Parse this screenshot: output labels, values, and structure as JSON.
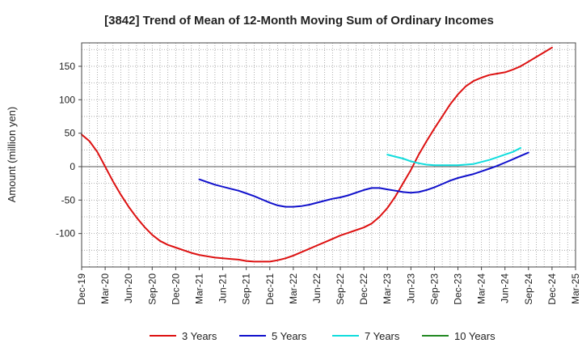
{
  "chart_data": {
    "type": "line",
    "title": "[3842]  Trend of Mean of 12-Month Moving Sum of Ordinary Incomes",
    "xlabel": "",
    "ylabel": "Amount (million yen)",
    "ylim": [
      -150,
      185
    ],
    "yticks": [
      150,
      100,
      50,
      0,
      -50,
      -100
    ],
    "xtick_labels": [
      "Dec-19",
      "Mar-20",
      "Jun-20",
      "Sep-20",
      "Dec-20",
      "Mar-21",
      "Jun-21",
      "Sep-21",
      "Dec-21",
      "Mar-22",
      "Jun-22",
      "Sep-22",
      "Dec-22",
      "Mar-23",
      "Jun-23",
      "Sep-23",
      "Dec-23",
      "Mar-24",
      "Jun-24",
      "Sep-24",
      "Dec-24",
      "Mar-25"
    ],
    "grid": true,
    "legend_position": "bottom",
    "series": [
      {
        "name": "3 Years",
        "color": "#dd1111",
        "start_index": 0,
        "values": [
          48,
          38,
          22,
          0,
          -22,
          -42,
          -60,
          -76,
          -90,
          -102,
          -111,
          -117,
          -121,
          -125,
          -129,
          -132,
          -134,
          -136,
          -137,
          -138,
          -139,
          -141,
          -142,
          -142,
          -142,
          -140,
          -137,
          -133,
          -128,
          -123,
          -118,
          -113,
          -108,
          -103,
          -99,
          -95,
          -91,
          -85,
          -75,
          -62,
          -45,
          -25,
          -5,
          18,
          38,
          57,
          75,
          93,
          108,
          120,
          128,
          133,
          137,
          139,
          141,
          145,
          150,
          157,
          164,
          171,
          178
        ]
      },
      {
        "name": "5 Years",
        "color": "#1111cc",
        "start_index": 15,
        "values": [
          -19,
          -23,
          -27,
          -30,
          -33,
          -36,
          -40,
          -44,
          -49,
          -54,
          -58,
          -60,
          -60,
          -59,
          -57,
          -54,
          -51,
          -48,
          -46,
          -43,
          -39,
          -35,
          -32,
          -32,
          -34,
          -36,
          -38,
          -39,
          -38,
          -35,
          -31,
          -26,
          -21,
          -17,
          -14,
          -11,
          -7,
          -3,
          1,
          6,
          11,
          16,
          21
        ]
      },
      {
        "name": "7 Years",
        "color": "#11dddd",
        "start_index": 39,
        "values": [
          18,
          15,
          12,
          8,
          5,
          3,
          2,
          2,
          2,
          2,
          3,
          4,
          7,
          10,
          14,
          18,
          22,
          28
        ]
      },
      {
        "name": "10 Years",
        "color": "#228822",
        "start_index": 0,
        "values": []
      }
    ]
  }
}
